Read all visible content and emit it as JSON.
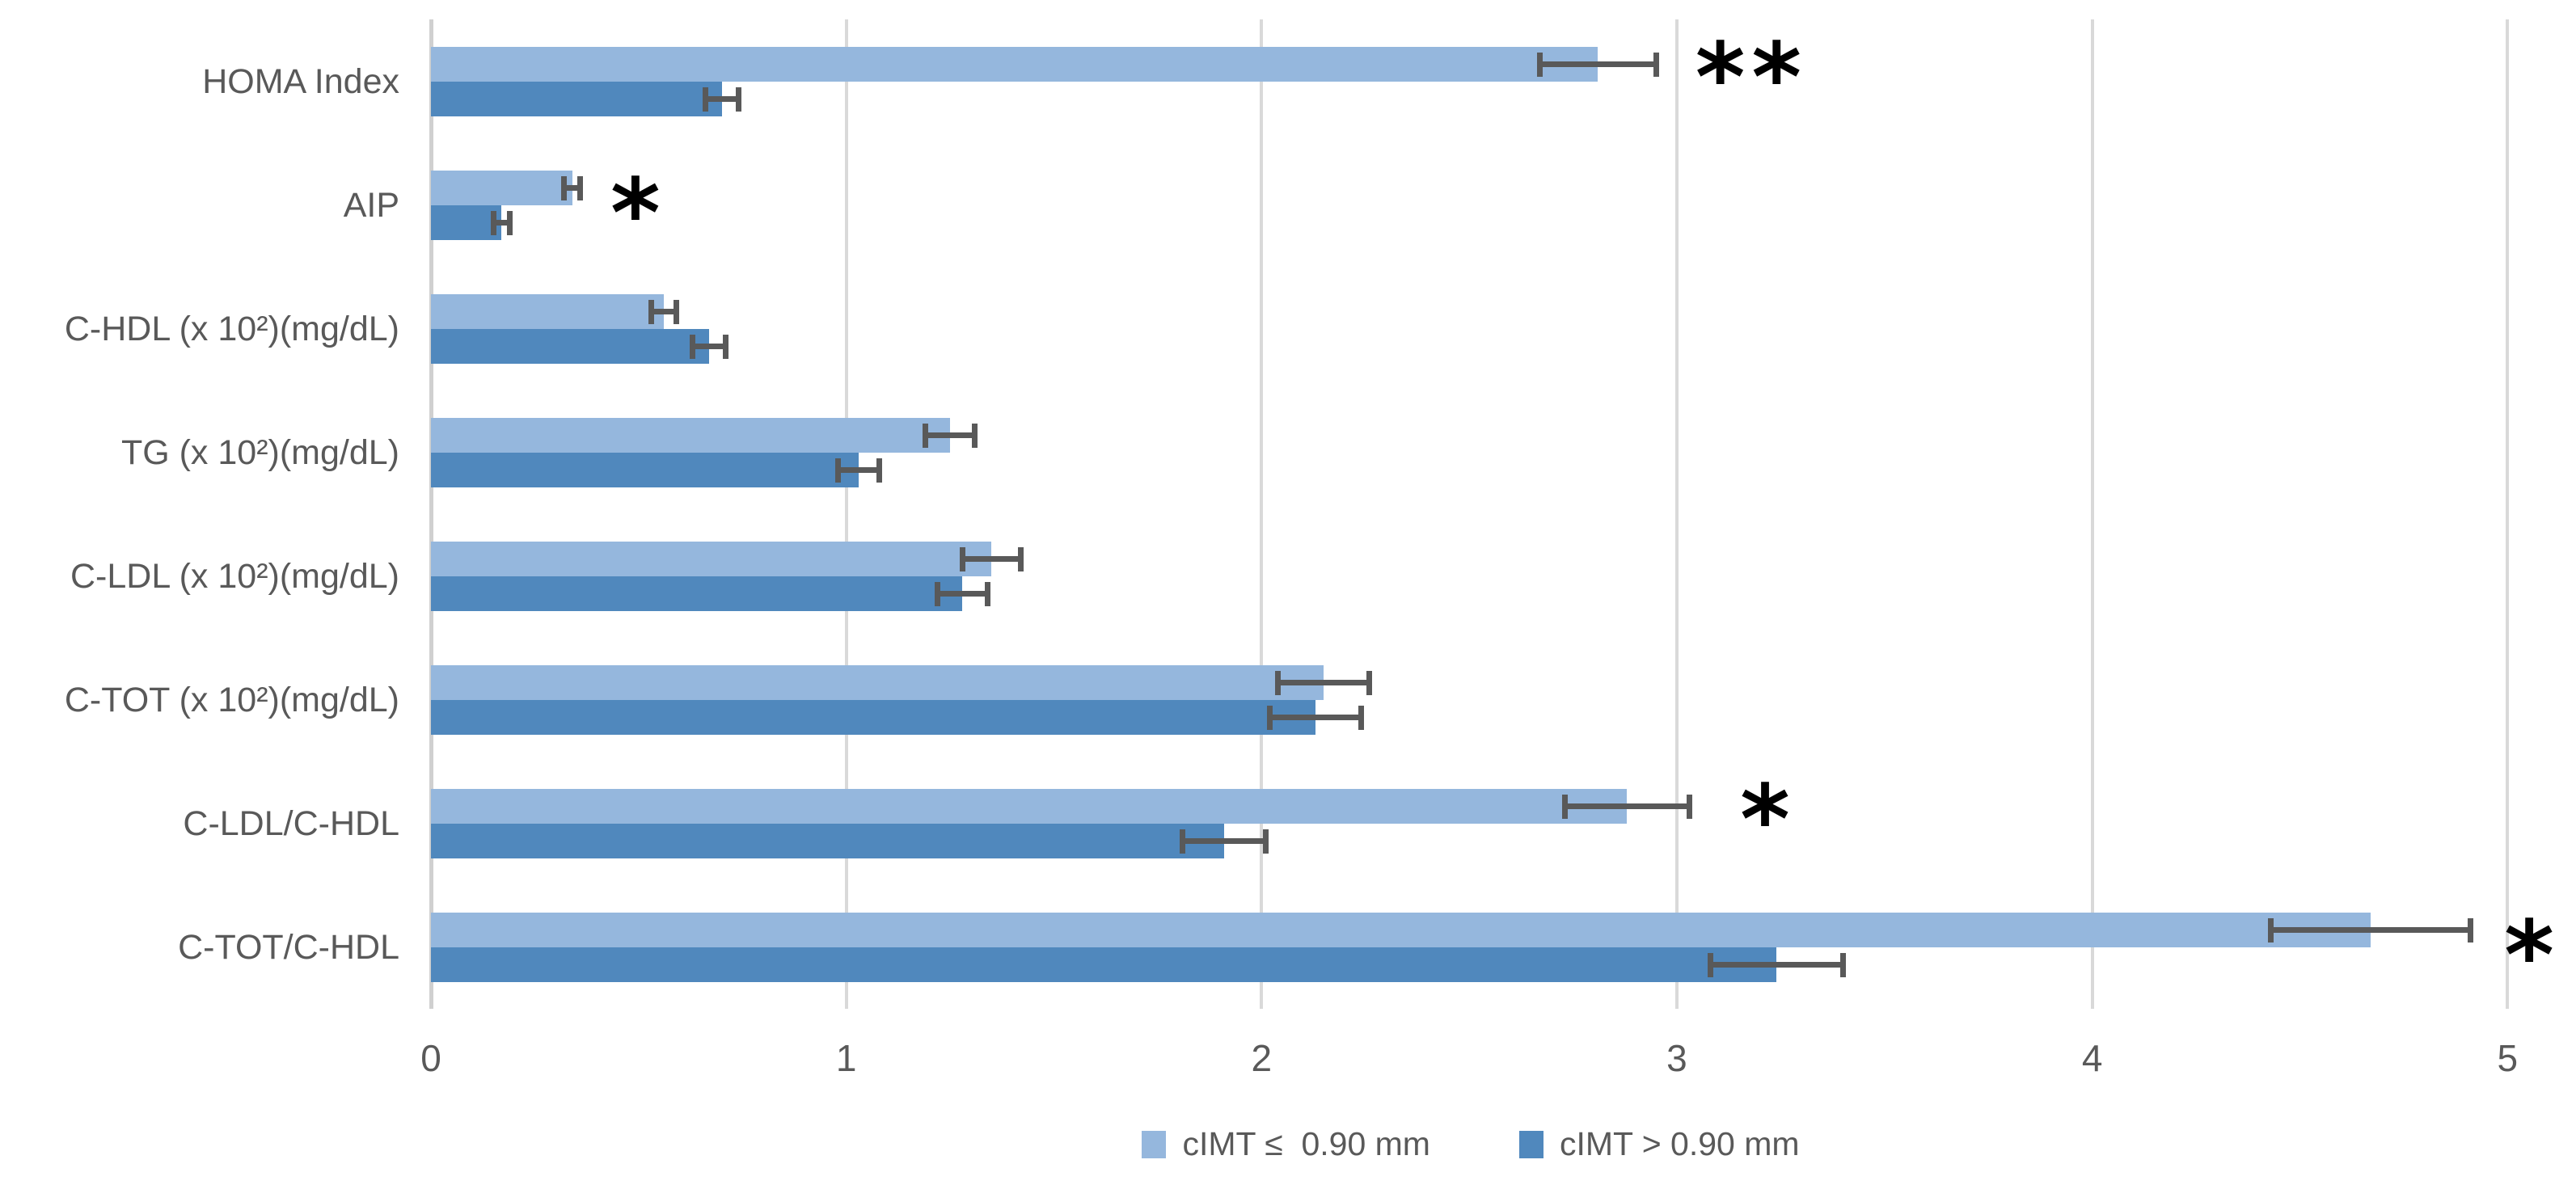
{
  "chart_data": {
    "type": "bar",
    "orientation": "horizontal",
    "title": "",
    "xlabel": "",
    "ylabel": "",
    "categories": [
      "HOMA Index",
      "AIP",
      "C-HDL (x 10²)(mg/dL)",
      "TG (x 10²)(mg/dL)",
      "C-LDL (x 10²)(mg/dL)",
      "C-TOT (x 10²)(mg/dL)",
      "C-LDL/C-HDL",
      "C-TOT/C-HDL"
    ],
    "series": [
      {
        "name": "cIMT ≤  0.90 mm",
        "color": "#95b7dd",
        "values": [
          2.81,
          0.34,
          0.56,
          1.25,
          1.35,
          2.15,
          2.88,
          4.67
        ],
        "errors": [
          0.14,
          0.02,
          0.03,
          0.06,
          0.07,
          0.11,
          0.15,
          0.24
        ]
      },
      {
        "name": "cIMT > 0.90 mm",
        "color": "#5088bd",
        "values": [
          0.7,
          0.17,
          0.67,
          1.03,
          1.28,
          2.13,
          1.91,
          3.24
        ],
        "errors": [
          0.04,
          0.02,
          0.04,
          0.05,
          0.06,
          0.11,
          0.1,
          0.16
        ]
      }
    ],
    "significance": [
      {
        "category": "HOMA Index",
        "label": "**",
        "x": 3.18,
        "valign": "light"
      },
      {
        "category": "AIP",
        "label": "*",
        "x": 0.5,
        "valign": "mid"
      },
      {
        "category": "C-LDL/C-HDL",
        "label": "*",
        "x": 3.22,
        "valign": "light"
      },
      {
        "category": "C-TOT/C-HDL",
        "label": "*",
        "x": 5.06,
        "valign": "mid"
      }
    ],
    "x_axis": {
      "min": 0,
      "max": 5,
      "ticks": [
        "0",
        "1",
        "2",
        "3",
        "4",
        "5"
      ]
    },
    "grid": true,
    "error_bars": true,
    "legend_position": "bottom-center",
    "colors": {
      "grid": "#d9d9d9",
      "axis_line": "#d0d0d0",
      "error_bar": "#595959",
      "text": "#595959",
      "significance": "#000000"
    }
  }
}
